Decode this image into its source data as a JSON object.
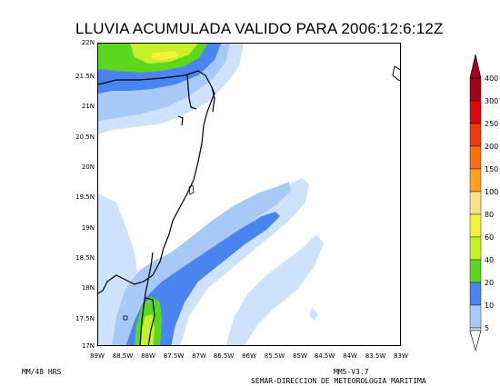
{
  "title": "LLUVIA ACUMULADA VALIDO PARA 2006:12:6:12Z",
  "latitude_labels": [
    "22N",
    "21.5N",
    "21N",
    "20.5N",
    "20N",
    "19.5N",
    "19N",
    "18.5N",
    "18N",
    "17.5N",
    "17N"
  ],
  "longitude_labels": [
    "89W",
    "88.5W",
    "88W",
    "87.5W",
    "87W",
    "86.5W",
    "86W",
    "85.5W",
    "85W",
    "84.5W",
    "84W",
    "83.5W",
    "83W"
  ],
  "colorbar": {
    "levels": [
      "5",
      "10",
      "20",
      "40",
      "60",
      "80",
      "100",
      "150",
      "200",
      "250",
      "300",
      "400"
    ],
    "colors": [
      "#cfe2fb",
      "#a8c8f5",
      "#4a84f0",
      "#5cd61e",
      "#c8f029",
      "#f2f23a",
      "#fae088",
      "#ff9e1f",
      "#ff6d12",
      "#f03a0f",
      "#d9090e",
      "#a3001e"
    ]
  },
  "footer": {
    "left": "MM/48 HRS",
    "model": "MM5-V3.7",
    "agency": "SEMAR-DIRECCION DE METEOROLOGIA MARITIMA"
  }
}
